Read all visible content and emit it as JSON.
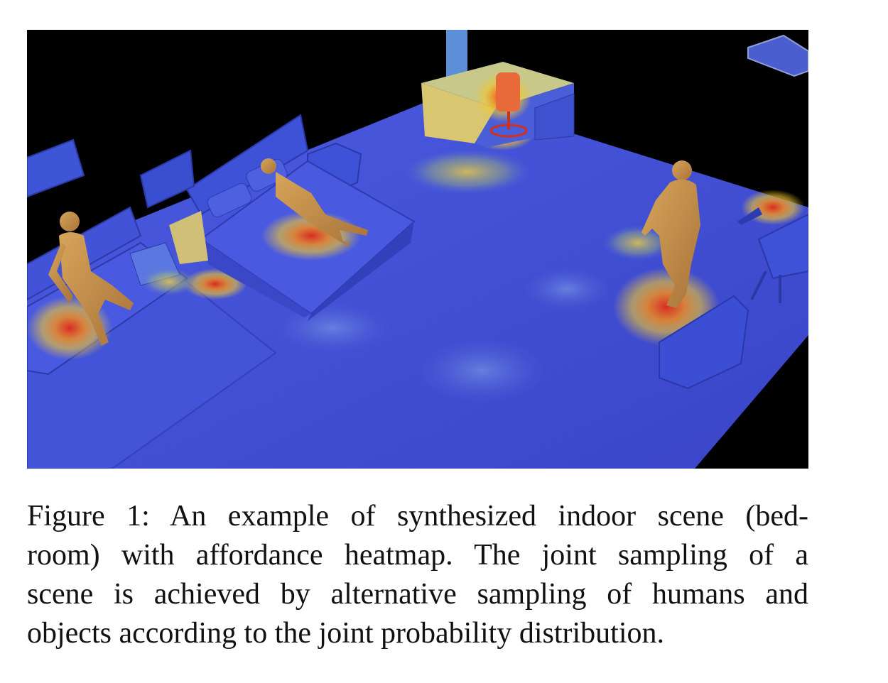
{
  "figure": {
    "image_description_icon": "heatmap-scene-image",
    "colors": {
      "background": "#000000",
      "floor": "#3f4fd6",
      "furniture": "#3e52d8",
      "heat_hot": "#e02a1a",
      "heat_warm": "#f0c020",
      "human": "#c9954a"
    }
  },
  "caption": {
    "lines": [
      "Figure 1:  An example of synthesized indoor scene (bed-",
      "room) with affordance heatmap.  The joint sampling of a",
      "scene is achieved by alternative sampling of humans and",
      "objects according to the joint probability distribution."
    ]
  }
}
